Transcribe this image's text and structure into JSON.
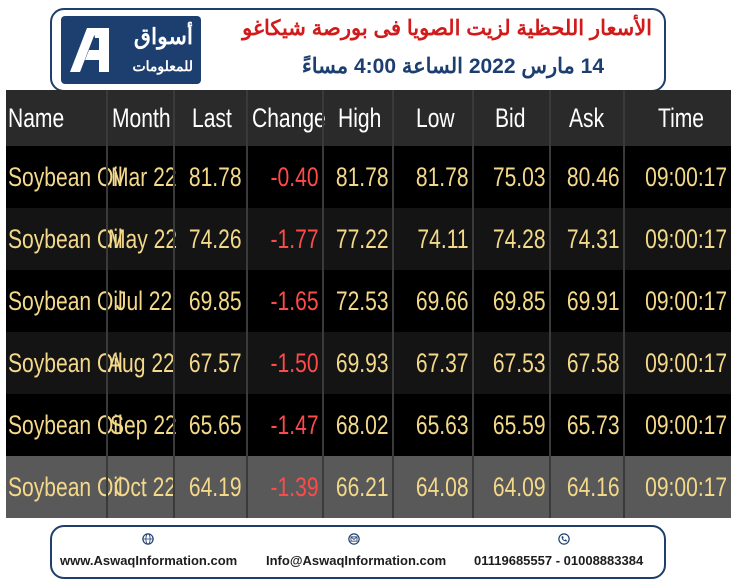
{
  "header": {
    "brand_name": "أسواق",
    "brand_sub": "للمعلومات",
    "title": "الأسعار اللحظية لزيت الصويا فى بورصة شيكاغو",
    "subtitle": "14 مارس 2022 الساعة 4:00 مساءً"
  },
  "table": {
    "columns": [
      "Name",
      "Month",
      "Last",
      "Change",
      "High",
      "Low",
      "Bid",
      "Ask",
      "Time"
    ],
    "rows": [
      [
        "Soybean Oil",
        "Mar 22",
        "81.78",
        "-0.40",
        "81.78",
        "81.78",
        "75.03",
        "80.46",
        "09:00:17"
      ],
      [
        "Soybean Oil",
        "May 22",
        "74.26",
        "-1.77",
        "77.22",
        "74.11",
        "74.28",
        "74.31",
        "09:00:17"
      ],
      [
        "Soybean Oil",
        "Jul 22",
        "69.85",
        "-1.65",
        "72.53",
        "69.66",
        "69.85",
        "69.91",
        "09:00:17"
      ],
      [
        "Soybean Oil",
        "Aug 22",
        "67.57",
        "-1.50",
        "69.93",
        "67.37",
        "67.53",
        "67.58",
        "09:00:17"
      ],
      [
        "Soybean Oil",
        "Sep 22",
        "65.65",
        "-1.47",
        "68.02",
        "65.63",
        "65.59",
        "65.73",
        "09:00:17"
      ],
      [
        "Soybean Oil",
        "Oct 22",
        "64.19",
        "-1.39",
        "66.21",
        "64.08",
        "64.09",
        "64.16",
        "09:00:17"
      ]
    ]
  },
  "footer": {
    "website": "www.AswaqInformation.com",
    "email": "Info@AswaqInformation.com",
    "phone": "01119685557 - 01008883384",
    "icons": [
      "globe-icon",
      "mail-icon",
      "phone-icon"
    ]
  },
  "colors": {
    "brand_blue": "#1d3f70",
    "title_red": "#d11a1a",
    "value_yellow": "#f4d98a",
    "negative_red": "#ff4a4a"
  }
}
